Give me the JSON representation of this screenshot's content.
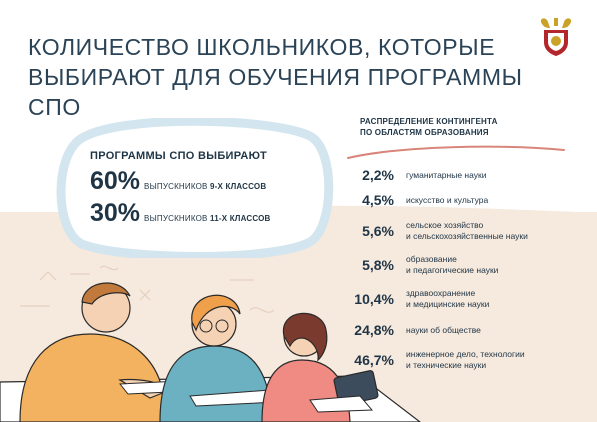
{
  "title_line1": "КОЛИЧЕСТВО ШКОЛЬНИКОВ, КОТОРЫЕ",
  "title_line2": "ВЫБИРАЮТ ДЛЯ ОБУЧЕНИЯ ПРОГРАММЫ СПО",
  "emblem_icon": "ministry-emblem-icon",
  "bubble": {
    "heading": "ПРОГРАММЫ СПО ВЫБИРАЮТ",
    "stats": [
      {
        "value": "60%",
        "text_pre": "ВЫПУСКНИКОВ ",
        "text_bold": "9-Х КЛАССОВ"
      },
      {
        "value": "30%",
        "text_pre": "ВЫПУСКНИКОВ ",
        "text_bold": "11-Х КЛАССОВ"
      }
    ]
  },
  "distribution": {
    "header_line1": "РАСПРЕДЕЛЕНИЕ КОНТИНГЕНТА",
    "header_line2": "ПО ОБЛАСТЯМ ОБРАЗОВАНИЯ",
    "rows": [
      {
        "pct": "2,2%",
        "label1": "гуманитарные науки",
        "label2": ""
      },
      {
        "pct": "4,5%",
        "label1": "искусство и культура",
        "label2": ""
      },
      {
        "pct": "5,6%",
        "label1": "сельское хозяйство",
        "label2": "и сельскохозяйственные науки"
      },
      {
        "pct": "5,8%",
        "label1": "образование",
        "label2": "и педагогические науки"
      },
      {
        "pct": "10,4%",
        "label1": "здравоохранение",
        "label2": "и медицинские науки"
      },
      {
        "pct": "24,8%",
        "label1": "науки об обществе",
        "label2": ""
      },
      {
        "pct": "46,7%",
        "label1": "инженерное дело, технологии",
        "label2": "и технические науки"
      }
    ]
  },
  "colors": {
    "text_dark": "#1f3546",
    "beige": "#f6e9dd",
    "accent_red": "#c0392b"
  }
}
